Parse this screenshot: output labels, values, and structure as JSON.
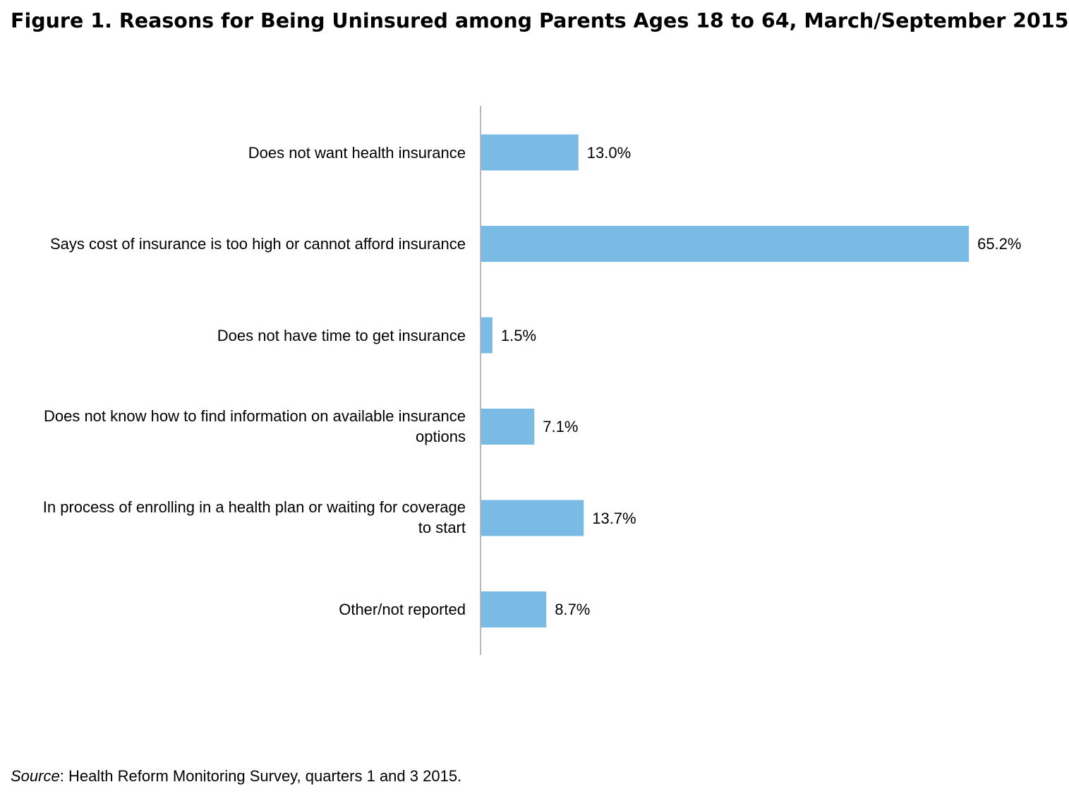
{
  "title": "Figure 1. Reasons for Being Uninsured among Parents Ages 18 to 64, March/September 2015",
  "source": {
    "label": "Source",
    "text": ": Health Reform Monitoring Survey, quarters 1 and 3 2015."
  },
  "colors": {
    "bar": "#7abbe6",
    "axis": "#888888"
  },
  "chart_data": {
    "type": "bar",
    "orientation": "horizontal",
    "title": "Figure 1. Reasons for Being Uninsured among Parents Ages 18 to 64, March/September 2015",
    "xlabel": "",
    "ylabel": "",
    "unit": "%",
    "xlim": [
      0,
      70
    ],
    "grid": false,
    "legend": "none",
    "categories": [
      [
        "Does not want health insurance"
      ],
      [
        "Says cost of insurance is too high or cannot afford insurance"
      ],
      [
        "Does not have time to get insurance"
      ],
      [
        "Does not know how to find information on available insurance",
        "options"
      ],
      [
        "In process of enrolling in a health plan or waiting for coverage",
        "to start"
      ],
      [
        "Other/not reported"
      ]
    ],
    "values": [
      13.0,
      65.2,
      1.5,
      7.1,
      13.7,
      8.7
    ],
    "data_labels": [
      "13.0%",
      "65.2%",
      "1.5%",
      "7.1%",
      "13.7%",
      "8.7%"
    ]
  }
}
